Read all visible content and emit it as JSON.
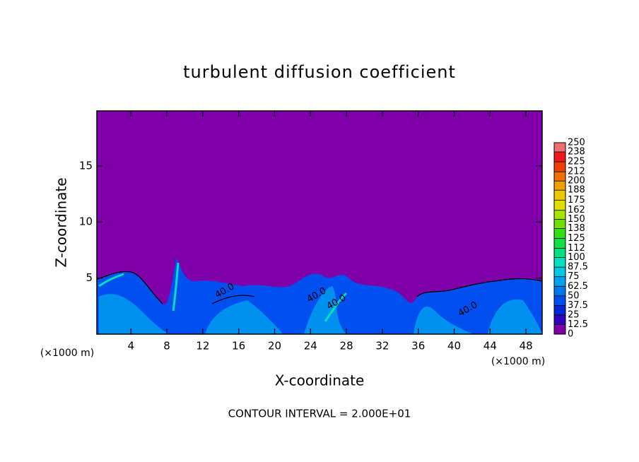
{
  "chart_data": {
    "type": "contour",
    "title": "turbulent diffusion coefficient",
    "x_label": "X-coordinate",
    "y_label": "Z-coordinate",
    "x_unit_label": "(×1000 m)",
    "footer": "CONTOUR INTERVAL = 2.000E+01",
    "xlim": [
      0.2,
      49.8
    ],
    "ylim": [
      0,
      19.9
    ],
    "xticks": [
      4,
      8,
      12,
      16,
      20,
      24,
      28,
      32,
      36,
      40,
      44,
      48
    ],
    "yticks": [
      5,
      10,
      15
    ],
    "contour_labels": [
      "40.0",
      "40.0",
      "40.0",
      "40.0"
    ],
    "colorbar": {
      "levels": [
        0,
        12.5,
        25,
        37.5,
        50,
        62.5,
        75,
        87.5,
        100,
        112,
        125,
        138,
        150,
        162,
        175,
        188,
        200,
        212,
        225,
        238,
        250
      ],
      "colors": [
        "#7f00a8",
        "#3400c0",
        "#0028d8",
        "#0050f0",
        "#0078f0",
        "#00a0f0",
        "#00c8e8",
        "#00e0c0",
        "#00e080",
        "#10e040",
        "#30e010",
        "#70e000",
        "#a8e000",
        "#e0e000",
        "#f0c800",
        "#f0a000",
        "#f07000",
        "#f04000",
        "#f01818",
        "#f07070"
      ]
    }
  }
}
